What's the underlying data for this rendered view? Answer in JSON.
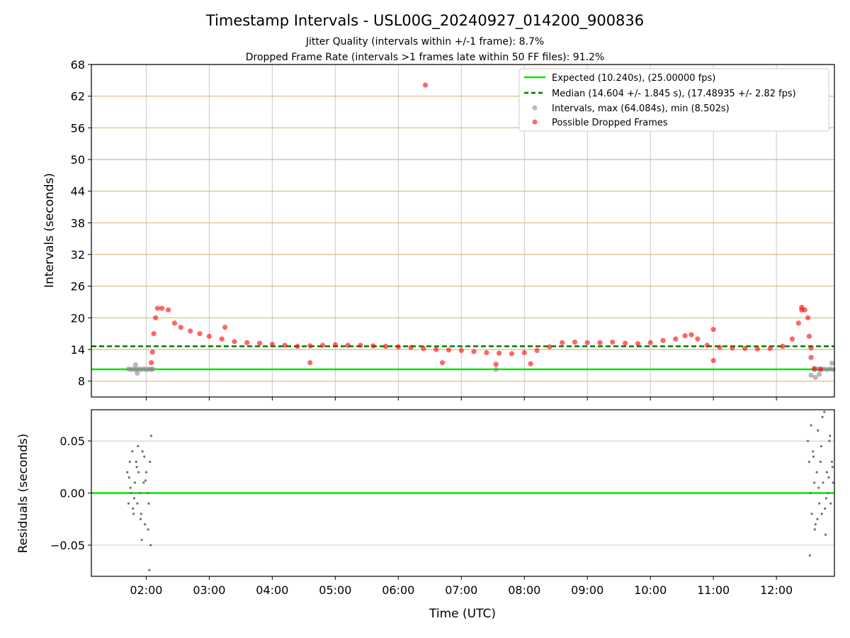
{
  "chart_data": [
    {
      "panel": "intervals",
      "type": "scatter",
      "title": "Timestamp Intervals - USL00G_20240927_014200_900836",
      "subtitle_lines": [
        "Jitter Quality (intervals within +/-1 frame): 8.7%",
        "Dropped Frame Rate (intervals >1 frames late within 50 FF files): 91.2%"
      ],
      "xlabel": "",
      "ylabel": "Intervals (seconds)",
      "ylim": [
        5,
        68
      ],
      "yticks": [
        8,
        14,
        20,
        26,
        32,
        38,
        44,
        50,
        56,
        62,
        68
      ],
      "ytick_labels": [
        "8",
        "14",
        "20",
        "26",
        "32",
        "38",
        "44",
        "50",
        "56",
        "62",
        "68"
      ],
      "x_range_hours": [
        1.13,
        12.92
      ],
      "xticks_hours": [
        2,
        3,
        4,
        5,
        6,
        7,
        8,
        9,
        10,
        11,
        12
      ],
      "grid": "y major gridlines tan, x gridlines grey",
      "legend_placement": "top-right",
      "legend": [
        "Expected (10.240s), (25.00000 fps)",
        "Median (14.604 +/- 1.845 s), (17.48935 +/- 2.82 fps)",
        "Intervals, max (64.084s), min (8.502s)",
        "Possible Dropped Frames"
      ],
      "reference_lines": {
        "expected": 10.24,
        "median": 14.604
      },
      "series": [
        {
          "name": "Intervals, max (64.084s), min (8.502s)",
          "color": "#888888",
          "x_hours": [
            1.72,
            1.76,
            1.8,
            1.84,
            1.88,
            1.92,
            1.96,
            2.0,
            2.04,
            2.08,
            2.1,
            1.83,
            1.86,
            7.55,
            12.55,
            12.6,
            12.65,
            12.7,
            12.75,
            12.8,
            12.85,
            12.9,
            12.62,
            12.68,
            12.88
          ],
          "values": [
            10.3,
            10.2,
            10.3,
            10.2,
            10.3,
            10.2,
            10.3,
            10.2,
            10.3,
            10.2,
            10.3,
            11.1,
            9.5,
            10.2,
            9.1,
            10.2,
            10.3,
            10.2,
            10.3,
            10.2,
            10.3,
            10.2,
            8.7,
            9.3,
            11.4
          ]
        },
        {
          "name": "Possible Dropped Frames",
          "color": "#ff0000",
          "x_hours": [
            2.08,
            2.1,
            2.12,
            2.15,
            2.18,
            2.25,
            2.35,
            2.45,
            2.55,
            2.7,
            2.85,
            3.0,
            3.2,
            3.4,
            3.6,
            3.8,
            4.0,
            4.2,
            4.4,
            4.6,
            4.8,
            5.0,
            5.2,
            5.4,
            5.6,
            5.8,
            6.0,
            6.2,
            6.4,
            6.6,
            6.8,
            7.0,
            7.2,
            7.4,
            7.6,
            7.8,
            8.0,
            8.2,
            8.4,
            8.6,
            8.8,
            9.0,
            9.2,
            9.4,
            9.6,
            9.8,
            10.0,
            10.2,
            10.4,
            10.55,
            10.65,
            10.75,
            10.9,
            11.1,
            11.3,
            11.5,
            11.7,
            11.9,
            12.1,
            12.25,
            12.35,
            12.4,
            12.45,
            12.5,
            12.52,
            12.55,
            12.6,
            12.7,
            6.43,
            4.6,
            3.25,
            11.0,
            11.0,
            8.1,
            7.55,
            6.7,
            12.4,
            12.55
          ],
          "values": [
            11.5,
            13.5,
            17.0,
            20.0,
            21.8,
            21.8,
            21.5,
            19.0,
            18.2,
            17.5,
            17.0,
            16.5,
            16.0,
            15.5,
            15.3,
            15.2,
            15.0,
            14.8,
            14.6,
            14.7,
            14.8,
            14.9,
            14.8,
            14.8,
            14.7,
            14.6,
            14.5,
            14.4,
            14.2,
            14.0,
            13.9,
            13.8,
            13.6,
            13.4,
            13.3,
            13.2,
            13.4,
            13.8,
            14.5,
            15.3,
            15.4,
            15.3,
            15.3,
            15.4,
            15.2,
            15.1,
            15.3,
            15.7,
            16.0,
            16.6,
            16.8,
            16.0,
            14.8,
            14.4,
            14.3,
            14.2,
            14.1,
            14.2,
            14.6,
            16.0,
            19.0,
            21.5,
            21.5,
            20.0,
            16.5,
            12.5,
            10.4,
            10.3,
            64.1,
            11.5,
            18.2,
            17.8,
            11.9,
            11.3,
            11.2,
            11.5,
            22.0,
            14.3
          ]
        }
      ]
    },
    {
      "panel": "residuals",
      "type": "scatter",
      "xlabel": "Time (UTC)",
      "ylabel": "Residuals (seconds)",
      "ylim": [
        -0.08,
        0.08
      ],
      "yticks": [
        0.05,
        0.0,
        -0.05
      ],
      "ytick_labels": [
        "0.05",
        "0.00",
        "−0.05"
      ],
      "xtick_labels": [
        "02:00",
        "03:00",
        "04:00",
        "05:00",
        "06:00",
        "07:00",
        "08:00",
        "09:00",
        "10:00",
        "11:00",
        "12:00"
      ],
      "grid": "y major gridlines grey",
      "reference_lines": {
        "zero": 0
      },
      "series": [
        {
          "name": "Residuals",
          "color": "#707070",
          "x_hours": [
            1.7,
            1.72,
            1.74,
            1.76,
            1.78,
            1.8,
            1.82,
            1.84,
            1.86,
            1.88,
            1.9,
            1.92,
            1.94,
            1.96,
            1.98,
            2.0,
            2.02,
            2.04,
            2.06,
            2.08,
            1.73,
            1.79,
            1.85,
            1.91,
            1.97,
            2.03,
            2.07,
            1.75,
            1.81,
            1.87,
            1.93,
            1.99,
            2.05,
            12.5,
            12.52,
            12.54,
            12.56,
            12.58,
            12.6,
            12.62,
            12.64,
            12.66,
            12.68,
            12.7,
            12.72,
            12.74,
            12.76,
            12.78,
            12.8,
            12.82,
            12.84,
            12.86,
            12.88,
            12.9,
            12.53,
            12.59,
            12.65,
            12.71,
            12.77,
            12.83,
            12.89,
            12.55,
            12.61,
            12.67,
            12.73,
            12.79,
            12.85
          ],
          "values": [
            0.02,
            -0.01,
            0.03,
            0.0,
            0.04,
            -0.02,
            0.01,
            0.03,
            -0.01,
            0.02,
            0.0,
            -0.02,
            0.04,
            0.01,
            -0.03,
            0.02,
            0.0,
            -0.01,
            0.03,
            0.055,
            0.015,
            -0.015,
            0.025,
            -0.025,
            0.035,
            -0.035,
            -0.05,
            0.005,
            -0.005,
            0.045,
            -0.045,
            0.012,
            -0.074,
            0.05,
            0.03,
            0.0,
            -0.02,
            0.04,
            0.01,
            -0.03,
            0.02,
            0.06,
            -0.01,
            0.03,
            -0.02,
            0.01,
            0.078,
            -0.04,
            0.02,
            0.0,
            0.05,
            -0.01,
            0.03,
            0.01,
            -0.06,
            0.035,
            -0.025,
            0.045,
            -0.015,
            0.015,
            0.025,
            0.065,
            -0.035,
            0.005,
            0.073,
            -0.005,
            0.055
          ]
        }
      ]
    }
  ]
}
